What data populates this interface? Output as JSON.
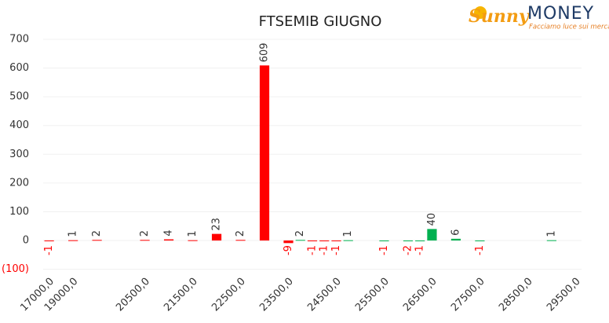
{
  "chart_data": {
    "type": "bar",
    "title": "FTSEMIB GIUGNO",
    "logo": {
      "brand": "Sunny",
      "name": "MONEY",
      "tagline": "Facciamo luce sui mercati"
    },
    "categories": [
      "17000,0",
      null,
      "19000,0",
      null,
      null,
      null,
      null,
      null,
      "20500,0",
      null,
      null,
      null,
      "21500,0",
      null,
      null,
      null,
      "22500,0",
      null,
      null,
      null,
      "23500,0",
      null,
      null,
      null,
      "24500,0",
      null,
      null,
      null,
      "25500,0",
      null,
      null,
      null,
      "26500,0",
      null,
      null,
      null,
      "27500,0",
      null,
      null,
      null,
      "28500,0",
      null,
      null,
      null,
      "29500,0"
    ],
    "values": [
      -1,
      null,
      1,
      null,
      2,
      null,
      null,
      null,
      2,
      null,
      4,
      null,
      1,
      null,
      23,
      null,
      2,
      null,
      609,
      null,
      -9,
      2,
      -1,
      -1,
      -1,
      1,
      null,
      null,
      -1,
      null,
      -2,
      -1,
      40,
      null,
      6,
      null,
      -1,
      null,
      null,
      null,
      null,
      null,
      1,
      null,
      null
    ],
    "colors": [
      "#ff0000",
      null,
      "#ff0000",
      null,
      "#ff0000",
      null,
      null,
      null,
      "#ff0000",
      null,
      "#ff0000",
      null,
      "#ff0000",
      null,
      "#ff0000",
      null,
      "#ff0000",
      null,
      "#ff0000",
      null,
      "#ff0000",
      "#00b050",
      "#ff0000",
      "#ff0000",
      "#ff0000",
      "#00b050",
      null,
      null,
      "#00b050",
      null,
      "#00b050",
      "#00b050",
      "#00b050",
      null,
      "#00b050",
      null,
      "#00b050",
      null,
      null,
      null,
      null,
      null,
      "#00b050",
      null,
      null
    ],
    "negative_label_color": "#ff0000",
    "ylim": [
      -100,
      700
    ],
    "yticks": [
      {
        "value": -100,
        "label": "(100)"
      },
      0,
      100,
      200,
      300,
      400,
      500,
      600,
      700
    ],
    "grid": true
  }
}
